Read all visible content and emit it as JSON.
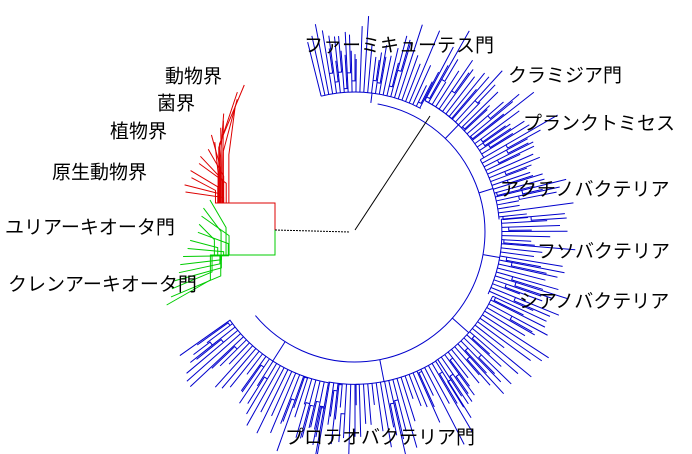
{
  "labels": [
    "動物界",
    "菌界",
    "植物界",
    "原生動物界",
    "ユリアーキオータ門",
    "クレンアーキオータ門",
    "ファーミキューテス門",
    "クラミジア門",
    "プランクトミセス",
    "アクチノバクテリア",
    "フソバクテリア",
    "シアノバクテリア",
    "プロテオバクテリア門"
  ]
}
